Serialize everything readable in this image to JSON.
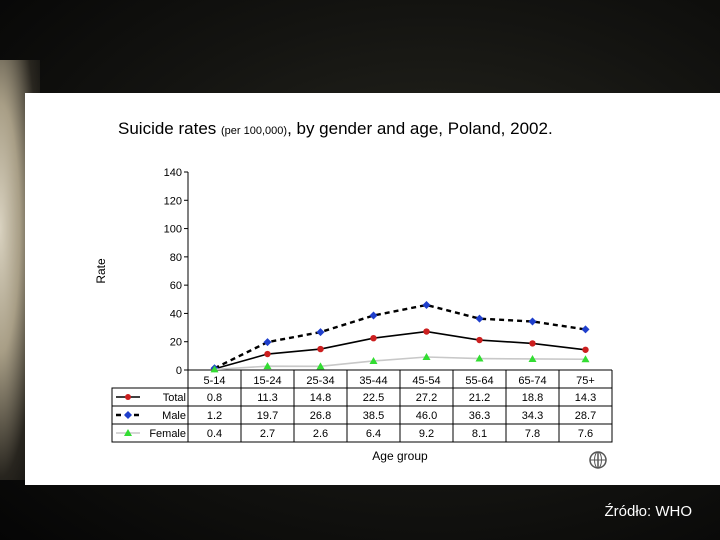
{
  "title": {
    "main_a": "Suicide rates",
    "small": "(per 100,000)",
    "main_b": ", by gender and age, Poland, 2002."
  },
  "source": "Źródło: WHO",
  "chart_data": {
    "type": "line",
    "title": "Suicide rates (per 100,000), by gender and age, Poland, 2002.",
    "xlabel": "Age group",
    "ylabel": "Rate",
    "ylim": [
      0,
      140
    ],
    "yticks": [
      0,
      20,
      40,
      60,
      80,
      100,
      120,
      140
    ],
    "categories": [
      "5-14",
      "15-24",
      "25-34",
      "35-44",
      "45-54",
      "55-64",
      "65-74",
      "75+"
    ],
    "series": [
      {
        "name": "Total",
        "values": [
          "0.8",
          "11.3",
          "14.8",
          "22.5",
          "27.2",
          "21.2",
          "18.8",
          "14.3"
        ],
        "color": "#cc1f1f",
        "line_color": "#000000",
        "marker": "circle",
        "dash": "solid"
      },
      {
        "name": "Male",
        "values": [
          "1.2",
          "19.7",
          "26.8",
          "38.5",
          "46.0",
          "36.3",
          "34.3",
          "28.7"
        ],
        "color": "#1f3fcc",
        "line_color": "#000000",
        "marker": "diamond",
        "dash": "dashed"
      },
      {
        "name": "Female",
        "values": [
          "0.4",
          "2.7",
          "2.6",
          "6.4",
          "9.2",
          "8.1",
          "7.8",
          "7.6"
        ],
        "color": "#33dd33",
        "line_color": "#c8c8c8",
        "marker": "triangle",
        "dash": "solid"
      }
    ],
    "legend": "table-below",
    "grid": false
  }
}
